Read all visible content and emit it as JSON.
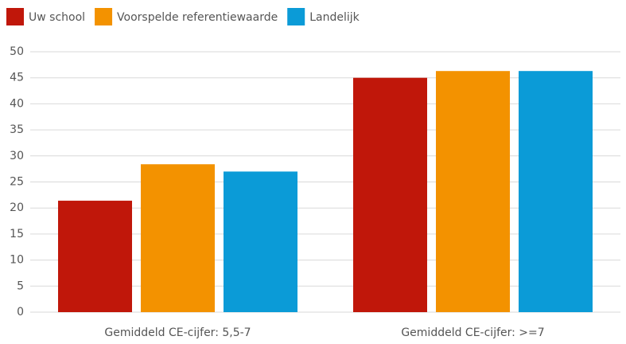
{
  "chart_data": {
    "type": "bar",
    "categories": [
      "Gemiddeld CE-cijfer: 5,5-7",
      "Gemiddeld CE-cijfer: >=7"
    ],
    "series": [
      {
        "name": "Uw school",
        "color": "#c0170a",
        "values": [
          21.4,
          45.0
        ]
      },
      {
        "name": "Voorspelde referentiewaarde",
        "color": "#f39200",
        "values": [
          28.4,
          46.3
        ]
      },
      {
        "name": "Landelijk",
        "color": "#0b9bd7",
        "values": [
          27.0,
          46.3
        ]
      }
    ],
    "ylim": [
      0,
      50
    ],
    "yticks": [
      0,
      5,
      10,
      15,
      20,
      25,
      30,
      35,
      40,
      45,
      50
    ],
    "grid": true,
    "legend": "top-left"
  }
}
